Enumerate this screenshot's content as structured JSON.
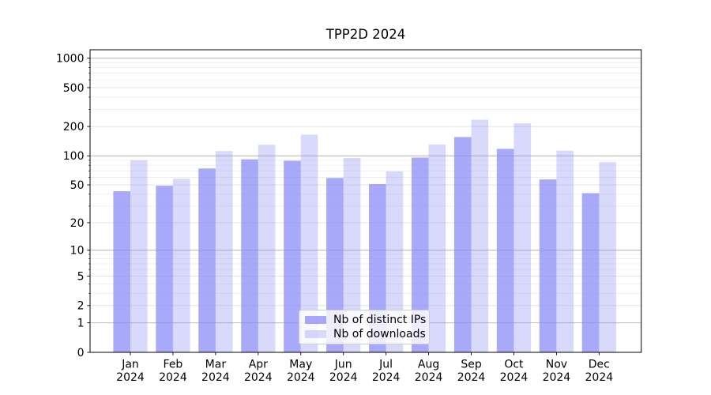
{
  "chart_data": {
    "type": "bar",
    "title": "TPP2D 2024",
    "categories": [
      "Jan",
      "Feb",
      "Mar",
      "Apr",
      "May",
      "Jun",
      "Jul",
      "Aug",
      "Sep",
      "Oct",
      "Nov",
      "Dec"
    ],
    "category_second_line": "2024",
    "series": [
      {
        "name": "Nb of distinct IPs",
        "values": [
          43,
          49,
          74,
          92,
          89,
          59,
          51,
          96,
          156,
          118,
          57,
          41
        ],
        "color": "rgba(136,136,246,0.72)"
      },
      {
        "name": "Nb of downloads",
        "values": [
          90,
          58,
          112,
          130,
          165,
          95,
          69,
          131,
          235,
          216,
          113,
          86
        ],
        "color": "rgba(136,136,246,0.32)"
      }
    ],
    "yticks": [
      0,
      1,
      2,
      5,
      10,
      20,
      50,
      100,
      200,
      500,
      1000
    ],
    "yscale": "log1p",
    "ylim": [
      0,
      1220
    ],
    "xlabel": "",
    "ylabel": "",
    "grid": "both",
    "legend_position": "lower center"
  },
  "colors": {
    "background": "#ffffff",
    "bar_base": "#8888f6",
    "bar_distinct_ips": "rgba(136,136,246,0.72)",
    "bar_downloads": "rgba(136,136,246,0.32)",
    "grid_major": "#b2b2b2",
    "grid_labeled": "#e0e0e0",
    "grid_minor": "#ececec",
    "spine": "#000000",
    "legend_border": "#cccccc",
    "text": "#000000"
  }
}
